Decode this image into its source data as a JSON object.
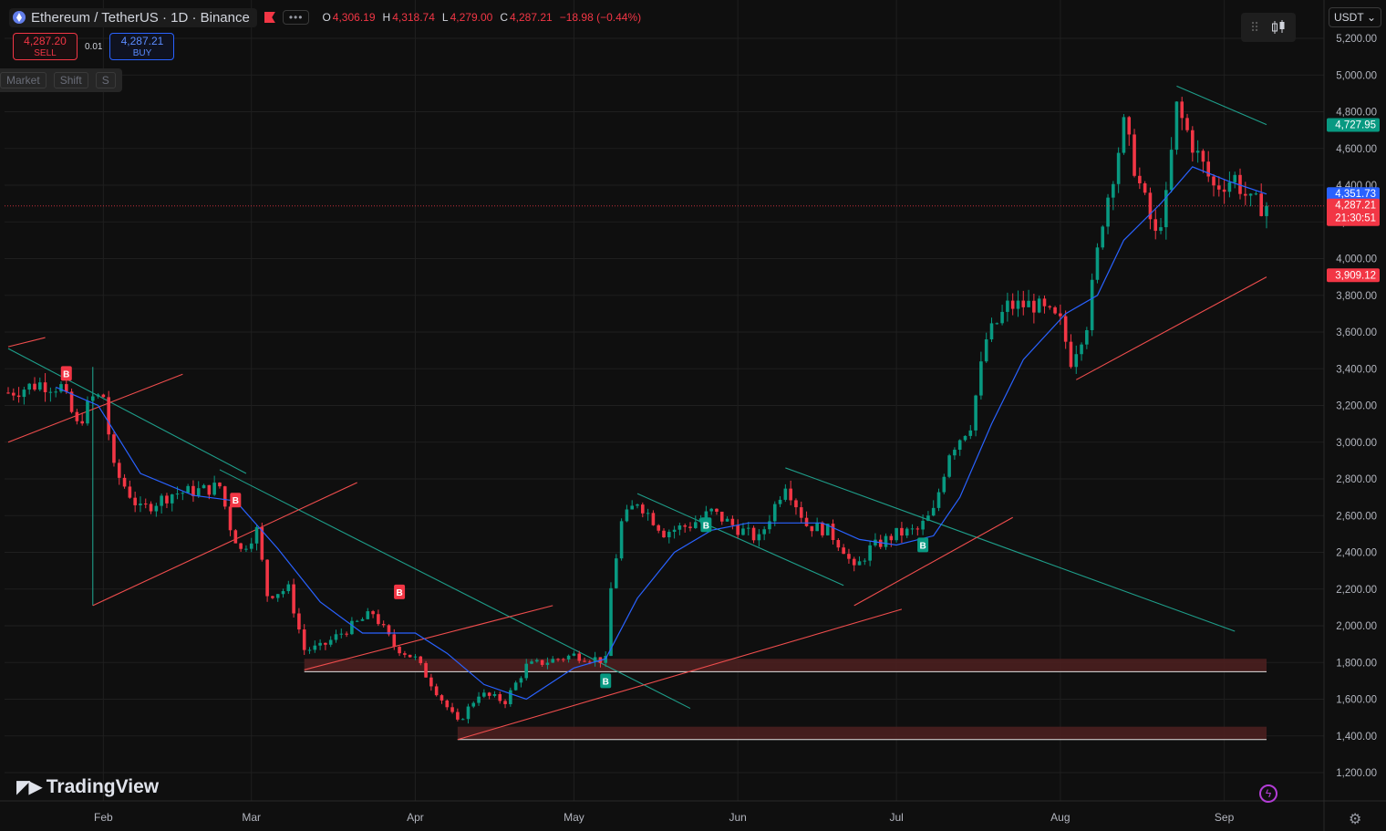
{
  "header": {
    "symbol": "Ethereum / TetherUS",
    "interval": "1D",
    "exchange": "Binance",
    "symbol_title": "Ethereum / TetherUS · 1D · Binance",
    "more_icon": "ellipsis-icon",
    "flag_icon": "flag-icon",
    "ohlc": {
      "open_label": "O",
      "open": "4,306.19",
      "high_label": "H",
      "high": "4,318.74",
      "low_label": "L",
      "low": "4,279.00",
      "close_label": "C",
      "close": "4,287.21",
      "change": "−18.98 (−0.44%)"
    }
  },
  "trade": {
    "sell_price": "4,287.20",
    "sell_label": "SELL",
    "spread": "0.01",
    "buy_price": "4,287.21",
    "buy_label": "BUY"
  },
  "shortcut_hint": {
    "k1": "Market",
    "k2": "Shift",
    "k3": "S"
  },
  "currency_select": "USDT",
  "brand": "TradingView",
  "colors": {
    "up": "#089981",
    "down": "#f23645",
    "ma": "#2962ff",
    "bg": "#0f0f0f",
    "grid": "#1f1f1f",
    "trend_green": "#1e9e8a",
    "trend_red": "#ef4d4d",
    "zone": "#4a1f1f"
  },
  "chart_data": {
    "type": "candlestick",
    "symbol": "ETHUSDT",
    "interval": "1D",
    "y_axis": {
      "min": 1100,
      "max": 5260,
      "step": 200,
      "ticks": [
        "1,200.00",
        "1,400.00",
        "1,600.00",
        "1,800.00",
        "2,000.00",
        "2,200.00",
        "2,400.00",
        "2,600.00",
        "2,800.00",
        "3,000.00",
        "3,200.00",
        "3,400.00",
        "3,600.00",
        "3,800.00",
        "4,000.00",
        "4,200.00",
        "4,400.00",
        "4,600.00",
        "4,800.00",
        "5,000.00",
        "5,200.00"
      ]
    },
    "x_axis": {
      "start": "2025-01-14",
      "end": "2025-09-09",
      "labels": [
        {
          "date": "2025-02-01",
          "text": "Feb"
        },
        {
          "date": "2025-03-01",
          "text": "Mar"
        },
        {
          "date": "2025-04-01",
          "text": "Apr"
        },
        {
          "date": "2025-05-01",
          "text": "May"
        },
        {
          "date": "2025-06-01",
          "text": "Jun"
        },
        {
          "date": "2025-07-01",
          "text": "Jul"
        },
        {
          "date": "2025-08-01",
          "text": "Aug"
        },
        {
          "date": "2025-09-01",
          "text": "Sep"
        }
      ]
    },
    "price_path": [
      [
        "2025-01-14",
        3270
      ],
      [
        "2025-01-20",
        3320
      ],
      [
        "2025-01-24",
        3300
      ],
      [
        "2025-01-27",
        3090
      ],
      [
        "2025-01-30",
        3240
      ],
      [
        "2025-02-01",
        3250
      ],
      [
        "2025-02-03",
        2850
      ],
      [
        "2025-02-08",
        2630
      ],
      [
        "2025-02-14",
        2720
      ],
      [
        "2025-02-20",
        2740
      ],
      [
        "2025-02-23",
        2760
      ],
      [
        "2025-02-25",
        2540
      ],
      [
        "2025-02-27",
        2410
      ],
      [
        "2025-03-02",
        2520
      ],
      [
        "2025-03-04",
        2170
      ],
      [
        "2025-03-08",
        2200
      ],
      [
        "2025-03-11",
        1870
      ],
      [
        "2025-03-14",
        1880
      ],
      [
        "2025-03-19",
        1980
      ],
      [
        "2025-03-24",
        2070
      ],
      [
        "2025-03-28",
        1890
      ],
      [
        "2025-04-01",
        1820
      ],
      [
        "2025-04-06",
        1600
      ],
      [
        "2025-04-09",
        1470
      ],
      [
        "2025-04-13",
        1630
      ],
      [
        "2025-04-18",
        1590
      ],
      [
        "2025-04-22",
        1780
      ],
      [
        "2025-05-01",
        1840
      ],
      [
        "2025-05-07",
        1810
      ],
      [
        "2025-05-08",
        2200
      ],
      [
        "2025-05-10",
        2560
      ],
      [
        "2025-05-13",
        2680
      ],
      [
        "2025-05-18",
        2510
      ],
      [
        "2025-05-23",
        2550
      ],
      [
        "2025-05-27",
        2620
      ],
      [
        "2025-06-01",
        2530
      ],
      [
        "2025-06-05",
        2470
      ],
      [
        "2025-06-10",
        2780
      ],
      [
        "2025-06-14",
        2550
      ],
      [
        "2025-06-18",
        2520
      ],
      [
        "2025-06-21",
        2420
      ],
      [
        "2025-06-23",
        2300
      ],
      [
        "2025-06-26",
        2420
      ],
      [
        "2025-07-01",
        2500
      ],
      [
        "2025-07-05",
        2520
      ],
      [
        "2025-07-08",
        2620
      ],
      [
        "2025-07-11",
        2950
      ],
      [
        "2025-07-15",
        3100
      ],
      [
        "2025-07-18",
        3560
      ],
      [
        "2025-07-22",
        3740
      ],
      [
        "2025-07-27",
        3750
      ],
      [
        "2025-08-01",
        3650
      ],
      [
        "2025-08-03",
        3450
      ],
      [
        "2025-08-06",
        3650
      ],
      [
        "2025-08-09",
        4220
      ],
      [
        "2025-08-13",
        4720
      ],
      [
        "2025-08-16",
        4400
      ],
      [
        "2025-08-19",
        4120
      ],
      [
        "2025-08-21",
        4320
      ],
      [
        "2025-08-23",
        4820
      ],
      [
        "2025-08-27",
        4560
      ],
      [
        "2025-08-30",
        4390
      ],
      [
        "2025-09-03",
        4440
      ],
      [
        "2025-09-06",
        4300
      ],
      [
        "2025-09-09",
        4287
      ]
    ],
    "moving_average": [
      [
        "2025-01-23",
        3300
      ],
      [
        "2025-01-31",
        3200
      ],
      [
        "2025-02-08",
        2830
      ],
      [
        "2025-02-18",
        2710
      ],
      [
        "2025-02-26",
        2680
      ],
      [
        "2025-03-06",
        2420
      ],
      [
        "2025-03-14",
        2130
      ],
      [
        "2025-03-22",
        1960
      ],
      [
        "2025-04-01",
        1960
      ],
      [
        "2025-04-07",
        1850
      ],
      [
        "2025-04-14",
        1680
      ],
      [
        "2025-04-22",
        1600
      ],
      [
        "2025-05-01",
        1770
      ],
      [
        "2025-05-07",
        1820
      ],
      [
        "2025-05-13",
        2150
      ],
      [
        "2025-05-20",
        2400
      ],
      [
        "2025-05-27",
        2520
      ],
      [
        "2025-06-03",
        2560
      ],
      [
        "2025-06-10",
        2560
      ],
      [
        "2025-06-17",
        2560
      ],
      [
        "2025-06-24",
        2470
      ],
      [
        "2025-07-01",
        2440
      ],
      [
        "2025-07-08",
        2490
      ],
      [
        "2025-07-13",
        2700
      ],
      [
        "2025-07-19",
        3100
      ],
      [
        "2025-07-25",
        3450
      ],
      [
        "2025-08-02",
        3700
      ],
      [
        "2025-08-08",
        3800
      ],
      [
        "2025-08-13",
        4100
      ],
      [
        "2025-08-20",
        4300
      ],
      [
        "2025-08-26",
        4500
      ],
      [
        "2025-09-02",
        4420
      ],
      [
        "2025-09-09",
        4352
      ]
    ],
    "buy_markers": [
      {
        "date": "2025-05-07",
        "price": 1740,
        "color": "#089981",
        "text": "B",
        "pos": "below"
      },
      {
        "date": "2025-05-26",
        "price": 2590,
        "color": "#089981",
        "text": "B",
        "pos": "below"
      },
      {
        "date": "2025-07-06",
        "price": 2480,
        "color": "#089981",
        "text": "B",
        "pos": "below"
      }
    ],
    "sell_markers": [
      {
        "date": "2025-01-25",
        "price": 3330,
        "color": "#f23645",
        "text": "B",
        "pos": "above"
      },
      {
        "date": "2025-02-26",
        "price": 2640,
        "color": "#f23645",
        "text": "B",
        "pos": "above"
      },
      {
        "date": "2025-03-29",
        "price": 2140,
        "color": "#f23645",
        "text": "B",
        "pos": "above"
      }
    ],
    "trend_lines": [
      {
        "color": "#1e9e8a",
        "p1": [
          "2025-01-14",
          3510
        ],
        "p2": [
          "2025-02-28",
          2830
        ]
      },
      {
        "color": "#1e9e8a",
        "p1": [
          "2025-01-30",
          3410
        ],
        "p2": [
          "2025-01-30",
          2110
        ]
      },
      {
        "color": "#1e9e8a",
        "p1": [
          "2025-02-23",
          2850
        ],
        "p2": [
          "2025-05-23",
          1550
        ]
      },
      {
        "color": "#1e9e8a",
        "p1": [
          "2025-05-13",
          2720
        ],
        "p2": [
          "2025-06-21",
          2220
        ]
      },
      {
        "color": "#1e9e8a",
        "p1": [
          "2025-06-10",
          2860
        ],
        "p2": [
          "2025-09-03",
          1970
        ]
      },
      {
        "color": "#1e9e8a",
        "p1": [
          "2025-08-23",
          4940
        ],
        "p2": [
          "2025-09-09",
          4730
        ]
      },
      {
        "color": "#ef4d4d",
        "p1": [
          "2025-01-14",
          3000
        ],
        "p2": [
          "2025-02-16",
          3370
        ]
      },
      {
        "color": "#ef4d4d",
        "p1": [
          "2025-01-14",
          3520
        ],
        "p2": [
          "2025-01-21",
          3570
        ]
      },
      {
        "color": "#ef4d4d",
        "p1": [
          "2025-01-30",
          2110
        ],
        "p2": [
          "2025-03-21",
          2780
        ]
      },
      {
        "color": "#ef4d4d",
        "p1": [
          "2025-03-11",
          1760
        ],
        "p2": [
          "2025-04-27",
          2110
        ]
      },
      {
        "color": "#ef4d4d",
        "p1": [
          "2025-04-09",
          1380
        ],
        "p2": [
          "2025-07-02",
          2090
        ]
      },
      {
        "color": "#ef4d4d",
        "p1": [
          "2025-06-23",
          2110
        ],
        "p2": [
          "2025-07-23",
          2590
        ]
      },
      {
        "color": "#ef4d4d",
        "p1": [
          "2025-08-04",
          3340
        ],
        "p2": [
          "2025-09-09",
          3900
        ]
      }
    ],
    "zones": [
      {
        "start": "2025-03-11",
        "end": "2025-09-09",
        "top": 1820,
        "bottom": 1750
      },
      {
        "start": "2025-04-09",
        "end": "2025-09-09",
        "top": 1450,
        "bottom": 1380
      }
    ],
    "price_labels": [
      {
        "price": 4727.95,
        "text": "4,727.95",
        "bg": "#089981"
      },
      {
        "price": 4351.73,
        "text": "4,351.73",
        "bg": "#2962ff"
      },
      {
        "price": 4287.21,
        "text": "4,287.21",
        "bg": "#f23645",
        "sub": "21:30:51"
      },
      {
        "price": 3909.12,
        "text": "3,909.12",
        "bg": "#f23645"
      }
    ],
    "last_price": 4287.21
  }
}
